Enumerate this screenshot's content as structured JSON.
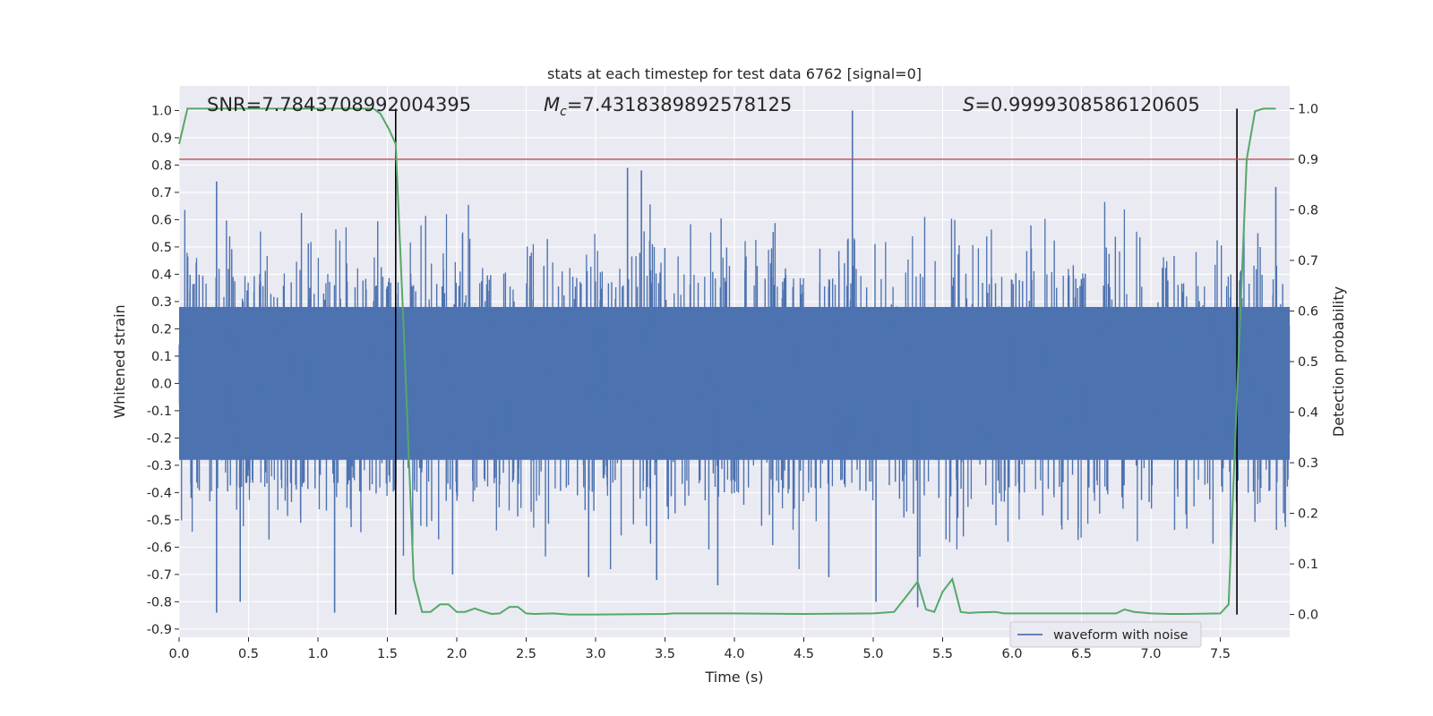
{
  "chart_data": {
    "type": "line",
    "title": "stats at each timestep for test data 6762 [signal=0]",
    "xlabel": "Time (s)",
    "ylabel": "Whitened strain",
    "y2label": "Detection probability",
    "xlim": [
      0.0,
      8.0
    ],
    "ylim": [
      -0.93,
      1.09
    ],
    "y2lim": [
      -0.045,
      1.045
    ],
    "x_ticks": [
      "0.0",
      "0.5",
      "1.0",
      "1.5",
      "2.0",
      "2.5",
      "3.0",
      "3.5",
      "4.0",
      "4.5",
      "5.0",
      "5.5",
      "6.0",
      "6.5",
      "7.0",
      "7.5"
    ],
    "y_ticks": [
      "1.0",
      "0.9",
      "0.8",
      "0.7",
      "0.6",
      "0.5",
      "0.4",
      "0.3",
      "0.2",
      "0.1",
      "0.0",
      "-0.1",
      "-0.2",
      "-0.3",
      "-0.4",
      "-0.5",
      "-0.6",
      "-0.7",
      "-0.8",
      "-0.9"
    ],
    "y2_ticks": [
      "1.0",
      "0.9",
      "0.8",
      "0.7",
      "0.6",
      "0.5",
      "0.4",
      "0.3",
      "0.2",
      "0.1",
      "0.0"
    ],
    "grid": true,
    "legend_position": "bottom-right",
    "annotations": {
      "snr": "SNR=7.7843708992004395",
      "mc_symbol": "M",
      "mc_sub": "c",
      "mc_value": "=7.4318389892578125",
      "s_symbol": "S",
      "s_value": "=0.9999308586120605"
    },
    "threshold_line": {
      "axis": "y2",
      "value": 0.9,
      "color": "#c44e52"
    },
    "vertical_markers": [
      1.56,
      7.62
    ],
    "series": [
      {
        "name": "waveform with noise",
        "axis": "y",
        "color": "#4c72b0",
        "kind": "noise",
        "core_amplitude": 0.28,
        "typical_peak_range": [
          0.35,
          0.7
        ],
        "peaks": [
          {
            "x": 0.27,
            "y": 0.74
          },
          {
            "x": 0.27,
            "y": -0.84
          },
          {
            "x": 1.12,
            "y": -0.84
          },
          {
            "x": 0.44,
            "y": -0.8
          },
          {
            "x": 3.23,
            "y": 0.79
          },
          {
            "x": 3.33,
            "y": 0.78
          },
          {
            "x": 4.85,
            "y": 1.0
          },
          {
            "x": 5.02,
            "y": -0.8
          },
          {
            "x": 5.32,
            "y": -0.82
          },
          {
            "x": 3.88,
            "y": -0.74
          },
          {
            "x": 3.44,
            "y": -0.72
          },
          {
            "x": 2.95,
            "y": -0.71
          },
          {
            "x": 4.68,
            "y": -0.71
          },
          {
            "x": 1.97,
            "y": -0.7
          },
          {
            "x": 7.9,
            "y": 0.72
          }
        ]
      },
      {
        "name": "",
        "axis": "y2",
        "color": "#55a868",
        "x": [
          0.0,
          0.06,
          0.13,
          0.5,
          1.0,
          1.4,
          1.45,
          1.51,
          1.56,
          1.62,
          1.69,
          1.75,
          1.81,
          1.88,
          1.94,
          2.0,
          2.06,
          2.13,
          2.19,
          2.25,
          2.31,
          2.38,
          2.44,
          2.5,
          2.56,
          2.69,
          2.81,
          3.0,
          3.5,
          3.56,
          4.0,
          4.5,
          5.0,
          5.15,
          5.25,
          5.32,
          5.38,
          5.44,
          5.5,
          5.57,
          5.63,
          5.69,
          5.75,
          5.88,
          5.94,
          6.0,
          6.5,
          6.75,
          6.81,
          6.88,
          7.0,
          7.13,
          7.25,
          7.5,
          7.56,
          7.63,
          7.69,
          7.75,
          7.81,
          7.9
        ],
        "y": [
          0.93,
          1.0,
          1.0,
          1.0,
          1.0,
          1.0,
          0.99,
          0.96,
          0.93,
          0.55,
          0.07,
          0.005,
          0.005,
          0.02,
          0.02,
          0.005,
          0.005,
          0.012,
          0.006,
          0.001,
          0.002,
          0.015,
          0.015,
          0.002,
          0.001,
          0.002,
          0.0,
          0.0,
          0.001,
          0.002,
          0.002,
          0.001,
          0.002,
          0.005,
          0.04,
          0.065,
          0.01,
          0.005,
          0.045,
          0.07,
          0.005,
          0.003,
          0.004,
          0.005,
          0.002,
          0.002,
          0.002,
          0.002,
          0.01,
          0.005,
          0.002,
          0.001,
          0.001,
          0.002,
          0.02,
          0.5,
          0.9,
          0.995,
          1.0,
          1.0
        ]
      }
    ]
  }
}
